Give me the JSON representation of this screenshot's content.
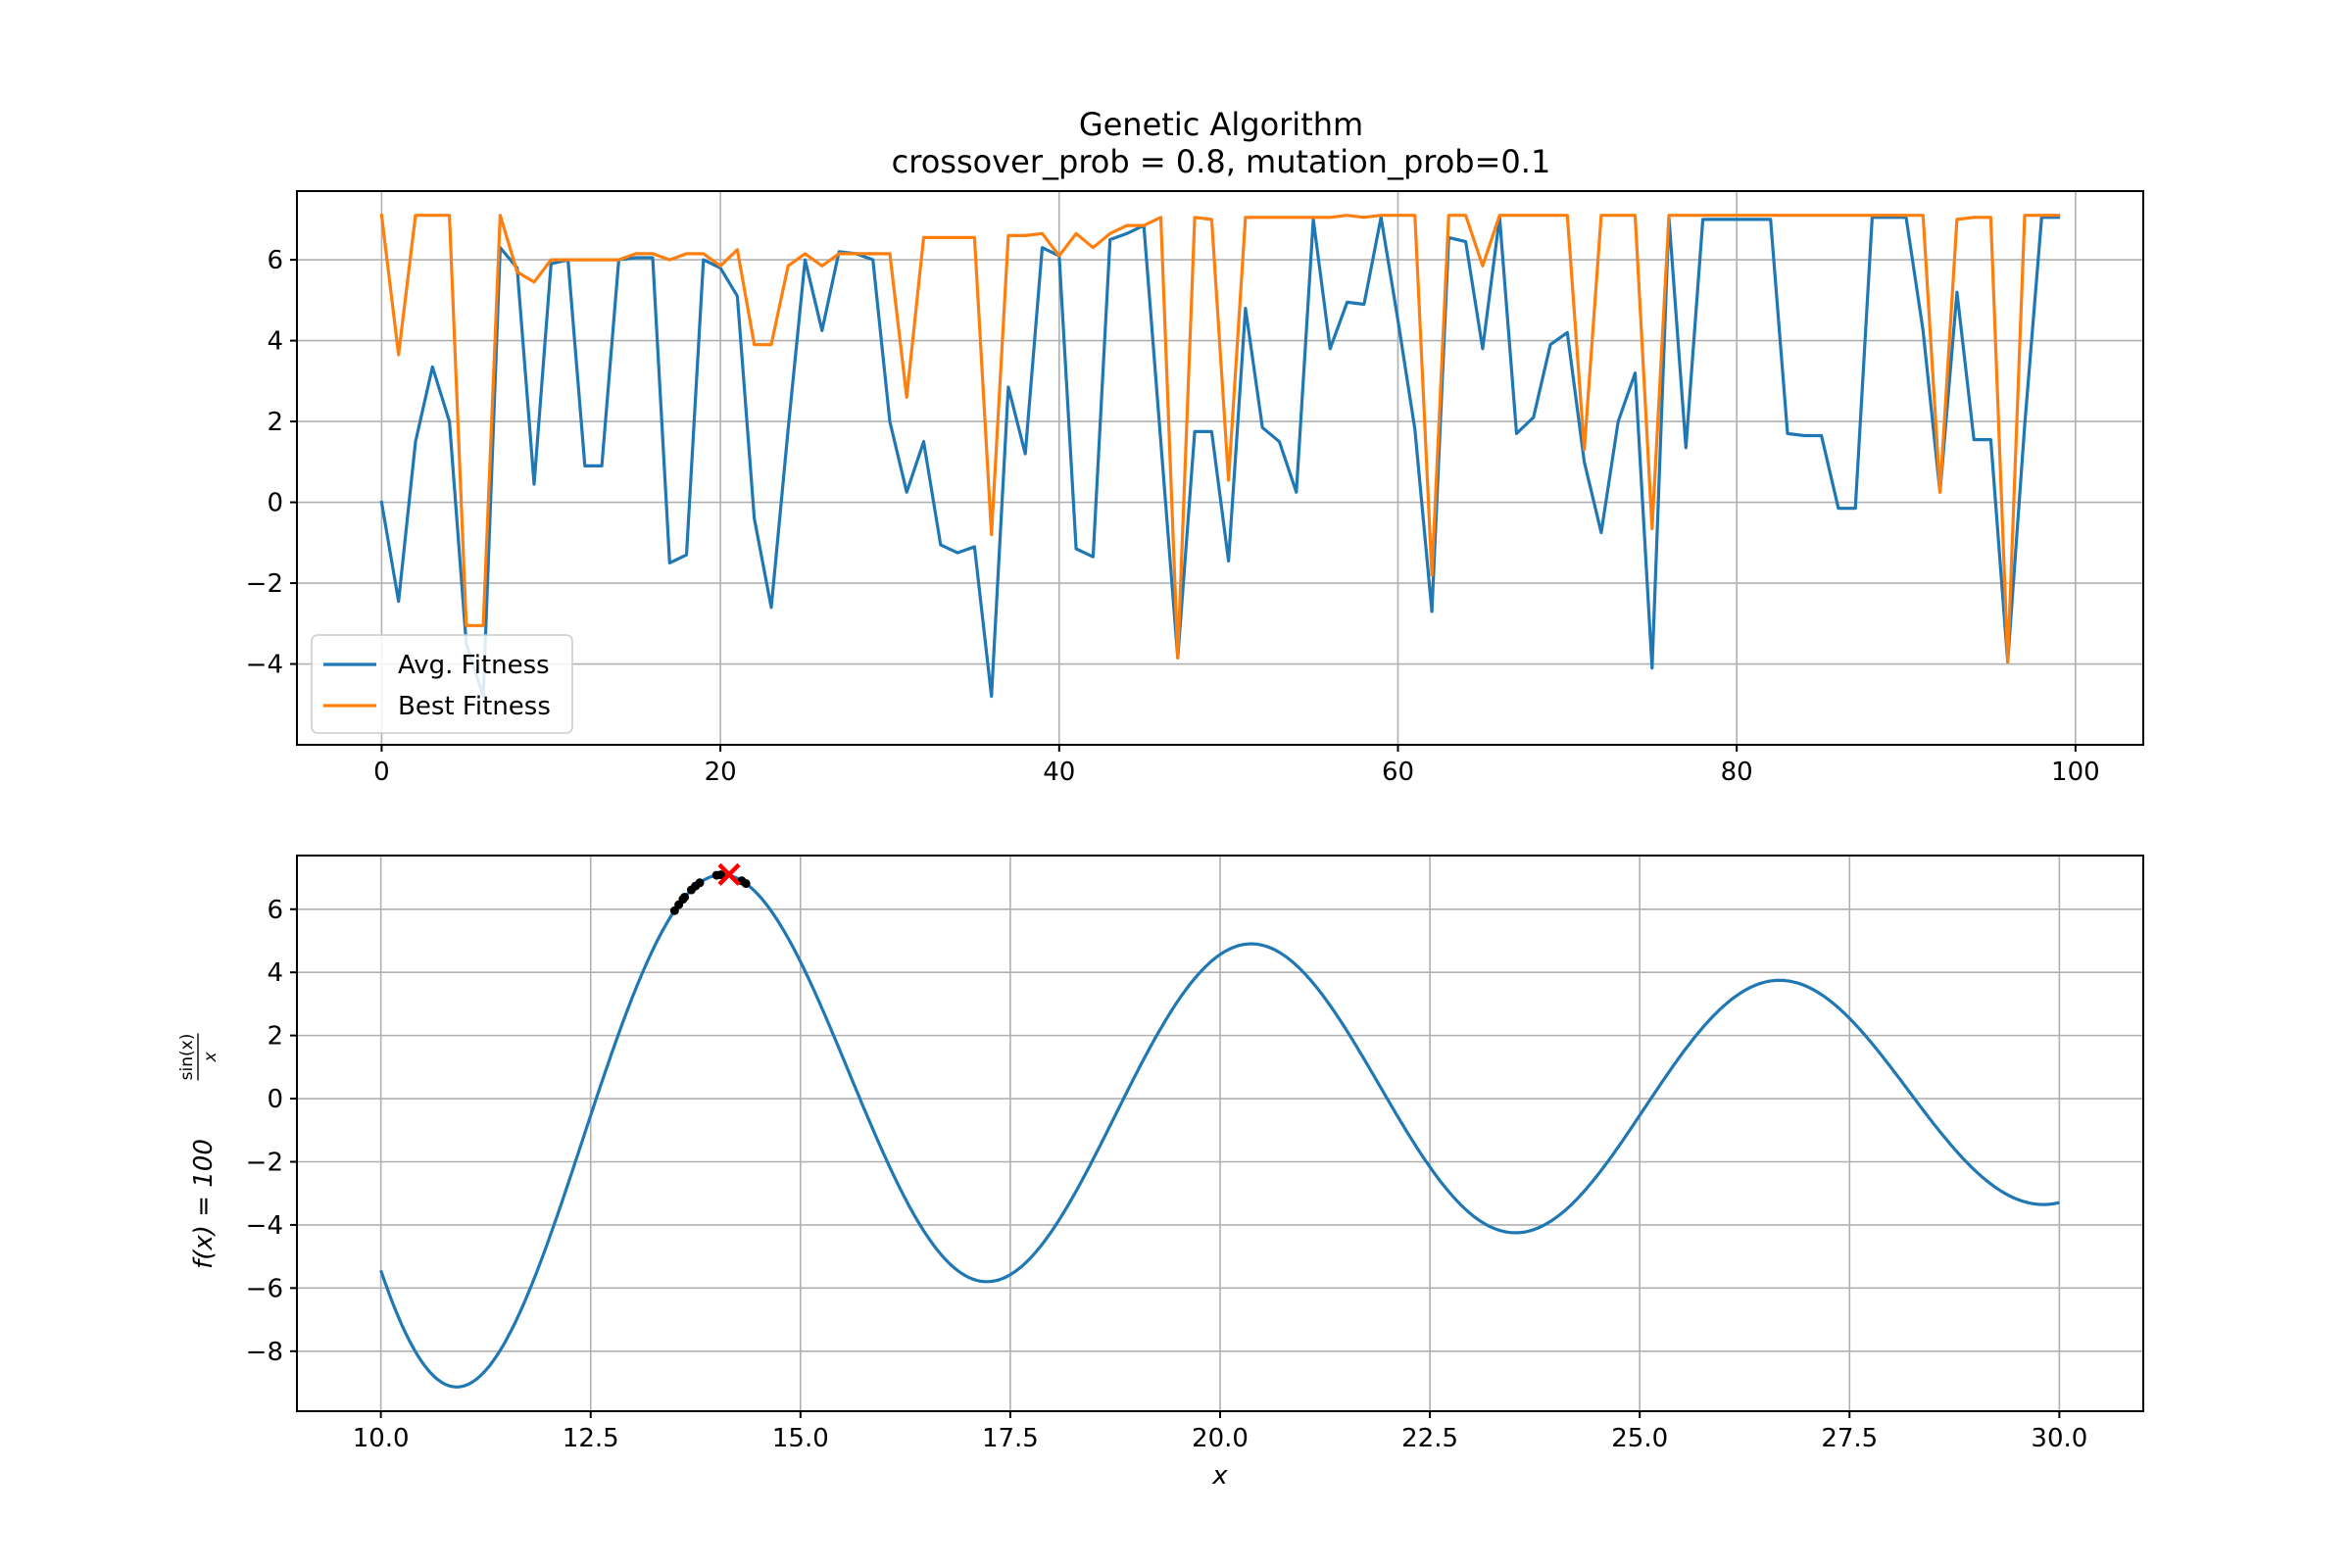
{
  "figure": {
    "title_line1": "Genetic Algorithm",
    "title_line2": "crossover_prob = 0.8, mutation_prob=0.1"
  },
  "chart_data": [
    {
      "type": "line",
      "title": "Genetic Algorithm\ncrossover_prob = 0.8, mutation_prob=0.1",
      "xlabel": "",
      "ylabel": "",
      "xlim": [
        -5,
        104
      ],
      "ylim": [
        -6,
        7.7
      ],
      "xticks": [
        0,
        20,
        40,
        60,
        80,
        100
      ],
      "yticks": [
        -4,
        -2,
        0,
        2,
        4,
        6
      ],
      "grid": true,
      "legend": "lower-left",
      "colors": {
        "avg": "#1f77b4",
        "best": "#ff7f0e"
      },
      "series": [
        {
          "name": "Avg. Fitness",
          "x": [
            0,
            1,
            2,
            3,
            4,
            5,
            6,
            7,
            8,
            9,
            10,
            11,
            12,
            13,
            14,
            15,
            16,
            17,
            18,
            19,
            20,
            21,
            22,
            23,
            24,
            25,
            26,
            27,
            28,
            29,
            30,
            31,
            32,
            33,
            34,
            35,
            36,
            37,
            38,
            39,
            40,
            41,
            42,
            43,
            44,
            45,
            46,
            47,
            48,
            49,
            50,
            51,
            52,
            53,
            54,
            55,
            56,
            57,
            58,
            59,
            60,
            61,
            62,
            63,
            64,
            65,
            66,
            67,
            68,
            69,
            70,
            71,
            72,
            73,
            74,
            75,
            76,
            77,
            78,
            79,
            80,
            81,
            82,
            83,
            84,
            85,
            86,
            87,
            88,
            89,
            90,
            91,
            92,
            93,
            94,
            95,
            96,
            97,
            98,
            99
          ],
          "values": [
            0.0,
            -2.45,
            1.5,
            3.35,
            2.0,
            -3.5,
            -4.8,
            6.3,
            5.8,
            0.45,
            5.9,
            6.0,
            0.9,
            0.9,
            6.0,
            6.05,
            6.05,
            -1.5,
            -1.3,
            6.0,
            5.8,
            5.1,
            -0.4,
            -2.6,
            1.8,
            6.0,
            4.25,
            6.2,
            6.15,
            6.0,
            2.0,
            0.25,
            1.5,
            -1.05,
            -1.25,
            -1.1,
            -4.8,
            2.85,
            1.2,
            6.3,
            6.1,
            -1.15,
            -1.35,
            6.5,
            6.65,
            6.85,
            1.5,
            -3.85,
            1.75,
            1.75,
            -1.45,
            4.8,
            1.85,
            1.5,
            0.25,
            7.0,
            3.8,
            4.95,
            4.9,
            7.05,
            4.5,
            1.8,
            -2.7,
            6.55,
            6.45,
            3.8,
            7.05,
            1.7,
            2.1,
            3.9,
            4.2,
            1.0,
            -0.75,
            2.0,
            3.2,
            -4.1,
            7.05,
            1.35,
            7.0,
            7.0,
            7.0,
            7.0,
            7.0,
            1.7,
            1.65,
            1.65,
            -0.15,
            -0.15,
            7.05,
            7.05,
            7.05,
            4.25,
            0.25,
            5.2,
            1.55,
            1.55,
            -3.95,
            1.9,
            7.05,
            7.05
          ]
        },
        {
          "name": "Best Fitness",
          "x": [
            0,
            1,
            2,
            3,
            4,
            5,
            6,
            7,
            8,
            9,
            10,
            11,
            12,
            13,
            14,
            15,
            16,
            17,
            18,
            19,
            20,
            21,
            22,
            23,
            24,
            25,
            26,
            27,
            28,
            29,
            30,
            31,
            32,
            33,
            34,
            35,
            36,
            37,
            38,
            39,
            40,
            41,
            42,
            43,
            44,
            45,
            46,
            47,
            48,
            49,
            50,
            51,
            52,
            53,
            54,
            55,
            56,
            57,
            58,
            59,
            60,
            61,
            62,
            63,
            64,
            65,
            66,
            67,
            68,
            69,
            70,
            71,
            72,
            73,
            74,
            75,
            76,
            77,
            78,
            79,
            80,
            81,
            82,
            83,
            84,
            85,
            86,
            87,
            88,
            89,
            90,
            91,
            92,
            93,
            94,
            95,
            96,
            97,
            98,
            99
          ],
          "values": [
            7.1,
            3.65,
            7.1,
            7.1,
            7.1,
            -3.05,
            -3.05,
            7.1,
            5.7,
            5.45,
            6.0,
            6.0,
            6.0,
            6.0,
            6.0,
            6.15,
            6.15,
            6.0,
            6.15,
            6.15,
            5.85,
            6.25,
            3.9,
            3.9,
            5.85,
            6.15,
            5.85,
            6.15,
            6.15,
            6.15,
            6.15,
            2.6,
            6.55,
            6.55,
            6.55,
            6.55,
            -0.8,
            6.6,
            6.6,
            6.65,
            6.1,
            6.65,
            6.3,
            6.65,
            6.85,
            6.85,
            7.05,
            -3.85,
            7.05,
            7.0,
            0.55,
            7.05,
            7.05,
            7.05,
            7.05,
            7.05,
            7.05,
            7.1,
            7.05,
            7.1,
            7.1,
            7.1,
            -1.8,
            7.1,
            7.1,
            5.85,
            7.1,
            7.1,
            7.1,
            7.1,
            7.1,
            1.3,
            7.1,
            7.1,
            7.1,
            -0.65,
            7.1,
            7.1,
            7.1,
            7.1,
            7.1,
            7.1,
            7.1,
            7.1,
            7.1,
            7.1,
            7.1,
            7.1,
            7.1,
            7.1,
            7.1,
            7.1,
            0.25,
            7.0,
            7.05,
            7.05,
            -3.95,
            7.1,
            7.1,
            7.1
          ]
        }
      ]
    },
    {
      "type": "line",
      "title": "",
      "xlabel": "x",
      "ylabel": "f(x) = 100^{sin(x)/x}",
      "ylabel_parts": {
        "main": "f(x) = 100",
        "sup_num": "sin(x)",
        "sup_den": "x"
      },
      "xlim": [
        9.0,
        31.0
      ],
      "ylim": [
        -9.9,
        7.7
      ],
      "xticks": [
        10.0,
        12.5,
        15.0,
        17.5,
        20.0,
        22.5,
        25.0,
        27.5,
        30.0
      ],
      "xtick_labels": [
        "10.0",
        "12.5",
        "15.0",
        "17.5",
        "20.0",
        "22.5",
        "25.0",
        "27.5",
        "30.0"
      ],
      "yticks": [
        -8,
        -6,
        -4,
        -2,
        0,
        2,
        4,
        6
      ],
      "grid": true,
      "curve": {
        "x_start": 10.0,
        "x_end": 30.0,
        "color": "#1f77b4"
      },
      "population_points": {
        "color": "#000000",
        "x": [
          13.5,
          13.55,
          13.6,
          13.62,
          13.7,
          13.75,
          13.8,
          14.0,
          14.05,
          14.3,
          14.35
        ]
      },
      "best_marker": {
        "x": 14.15,
        "y": 7.1,
        "color": "#ff0000",
        "marker": "x"
      }
    }
  ]
}
